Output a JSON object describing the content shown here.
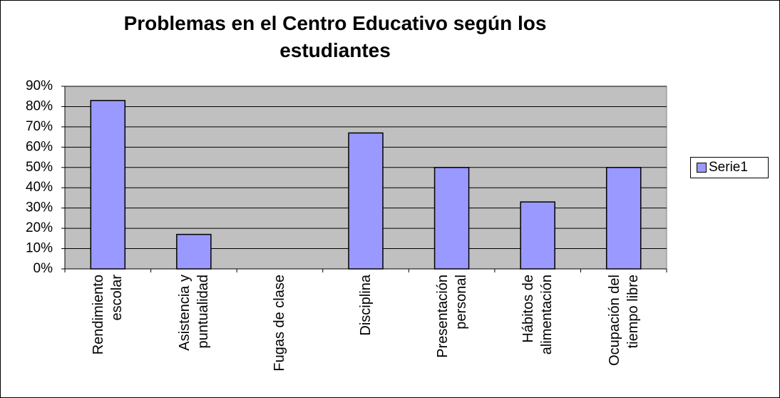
{
  "chart_data": {
    "type": "bar",
    "title": "Problemas en el Centro Educativo según los estudiantes",
    "categories": [
      "Rendimiento escolar",
      "Asistencia y puntualidad",
      "Fugas de clase",
      "Disciplina",
      "Presentación personal",
      "Hábitos de alimentación",
      "Ocupación del tiempo libre"
    ],
    "series": [
      {
        "name": "Serie1",
        "color": "#9999ff",
        "values": [
          83,
          17,
          0,
          67,
          50,
          33,
          50
        ]
      }
    ],
    "ylim": [
      0,
      90
    ],
    "yticks": [
      {
        "value": 0,
        "label": "0%"
      },
      {
        "value": 10,
        "label": "10%"
      },
      {
        "value": 20,
        "label": "20%"
      },
      {
        "value": 30,
        "label": "30%"
      },
      {
        "value": 40,
        "label": "40%"
      },
      {
        "value": 50,
        "label": "50%"
      },
      {
        "value": 60,
        "label": "60%"
      },
      {
        "value": 70,
        "label": "70%"
      },
      {
        "value": 80,
        "label": "80%"
      },
      {
        "value": 90,
        "label": "90%"
      }
    ],
    "grid": true,
    "legend": "right"
  }
}
